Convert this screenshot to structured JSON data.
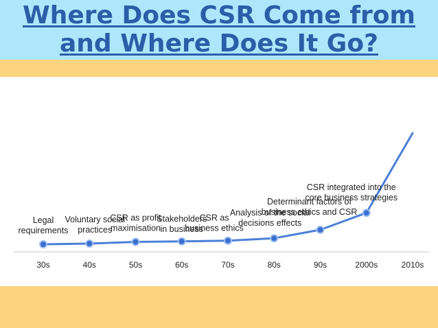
{
  "slide": {
    "title_line1": "Where Does CSR Come from",
    "title_line2": "and Where Does It Go?"
  },
  "colors": {
    "title_band": "#aee6fb",
    "accent_band": "#fcd37f",
    "title_text": "#2b5ea8",
    "line": "#4a7fd8",
    "marker": "#3a6fd0"
  },
  "chart_data": {
    "type": "line",
    "title": "",
    "xlabel": "",
    "ylabel": "",
    "categories": [
      "30s",
      "40s",
      "50s",
      "60s",
      "70s",
      "80s",
      "90s",
      "2000s",
      "2010s"
    ],
    "series": [
      {
        "values": [
          0,
          0.3,
          1,
          1.2,
          1.5,
          2.5,
          6,
          13,
          46
        ],
        "markers": [
          true,
          true,
          true,
          true,
          true,
          true,
          true,
          true,
          false
        ]
      }
    ],
    "annotations": [
      {
        "category": "30s",
        "lines": [
          "Legal",
          "requirements"
        ]
      },
      {
        "category": "40s",
        "lines": [
          "Voluntary social",
          "practices"
        ]
      },
      {
        "category": "50s",
        "lines": [
          "CSR as profit",
          "maximisation"
        ]
      },
      {
        "category": "60s",
        "lines": [
          "Stakeholders",
          "in business"
        ]
      },
      {
        "category": "70s",
        "lines": [
          "CSR as",
          "business ethics"
        ]
      },
      {
        "category": "80s",
        "lines": [
          "Analysis of the social",
          "decisions effects"
        ]
      },
      {
        "category": "90s",
        "lines": [
          "Determinant factors of",
          "business ethics and CSR"
        ]
      },
      {
        "category": "2000s",
        "lines": [
          "CSR integrated into the",
          "core business strategies"
        ]
      }
    ],
    "grid": false,
    "legend": "none"
  }
}
